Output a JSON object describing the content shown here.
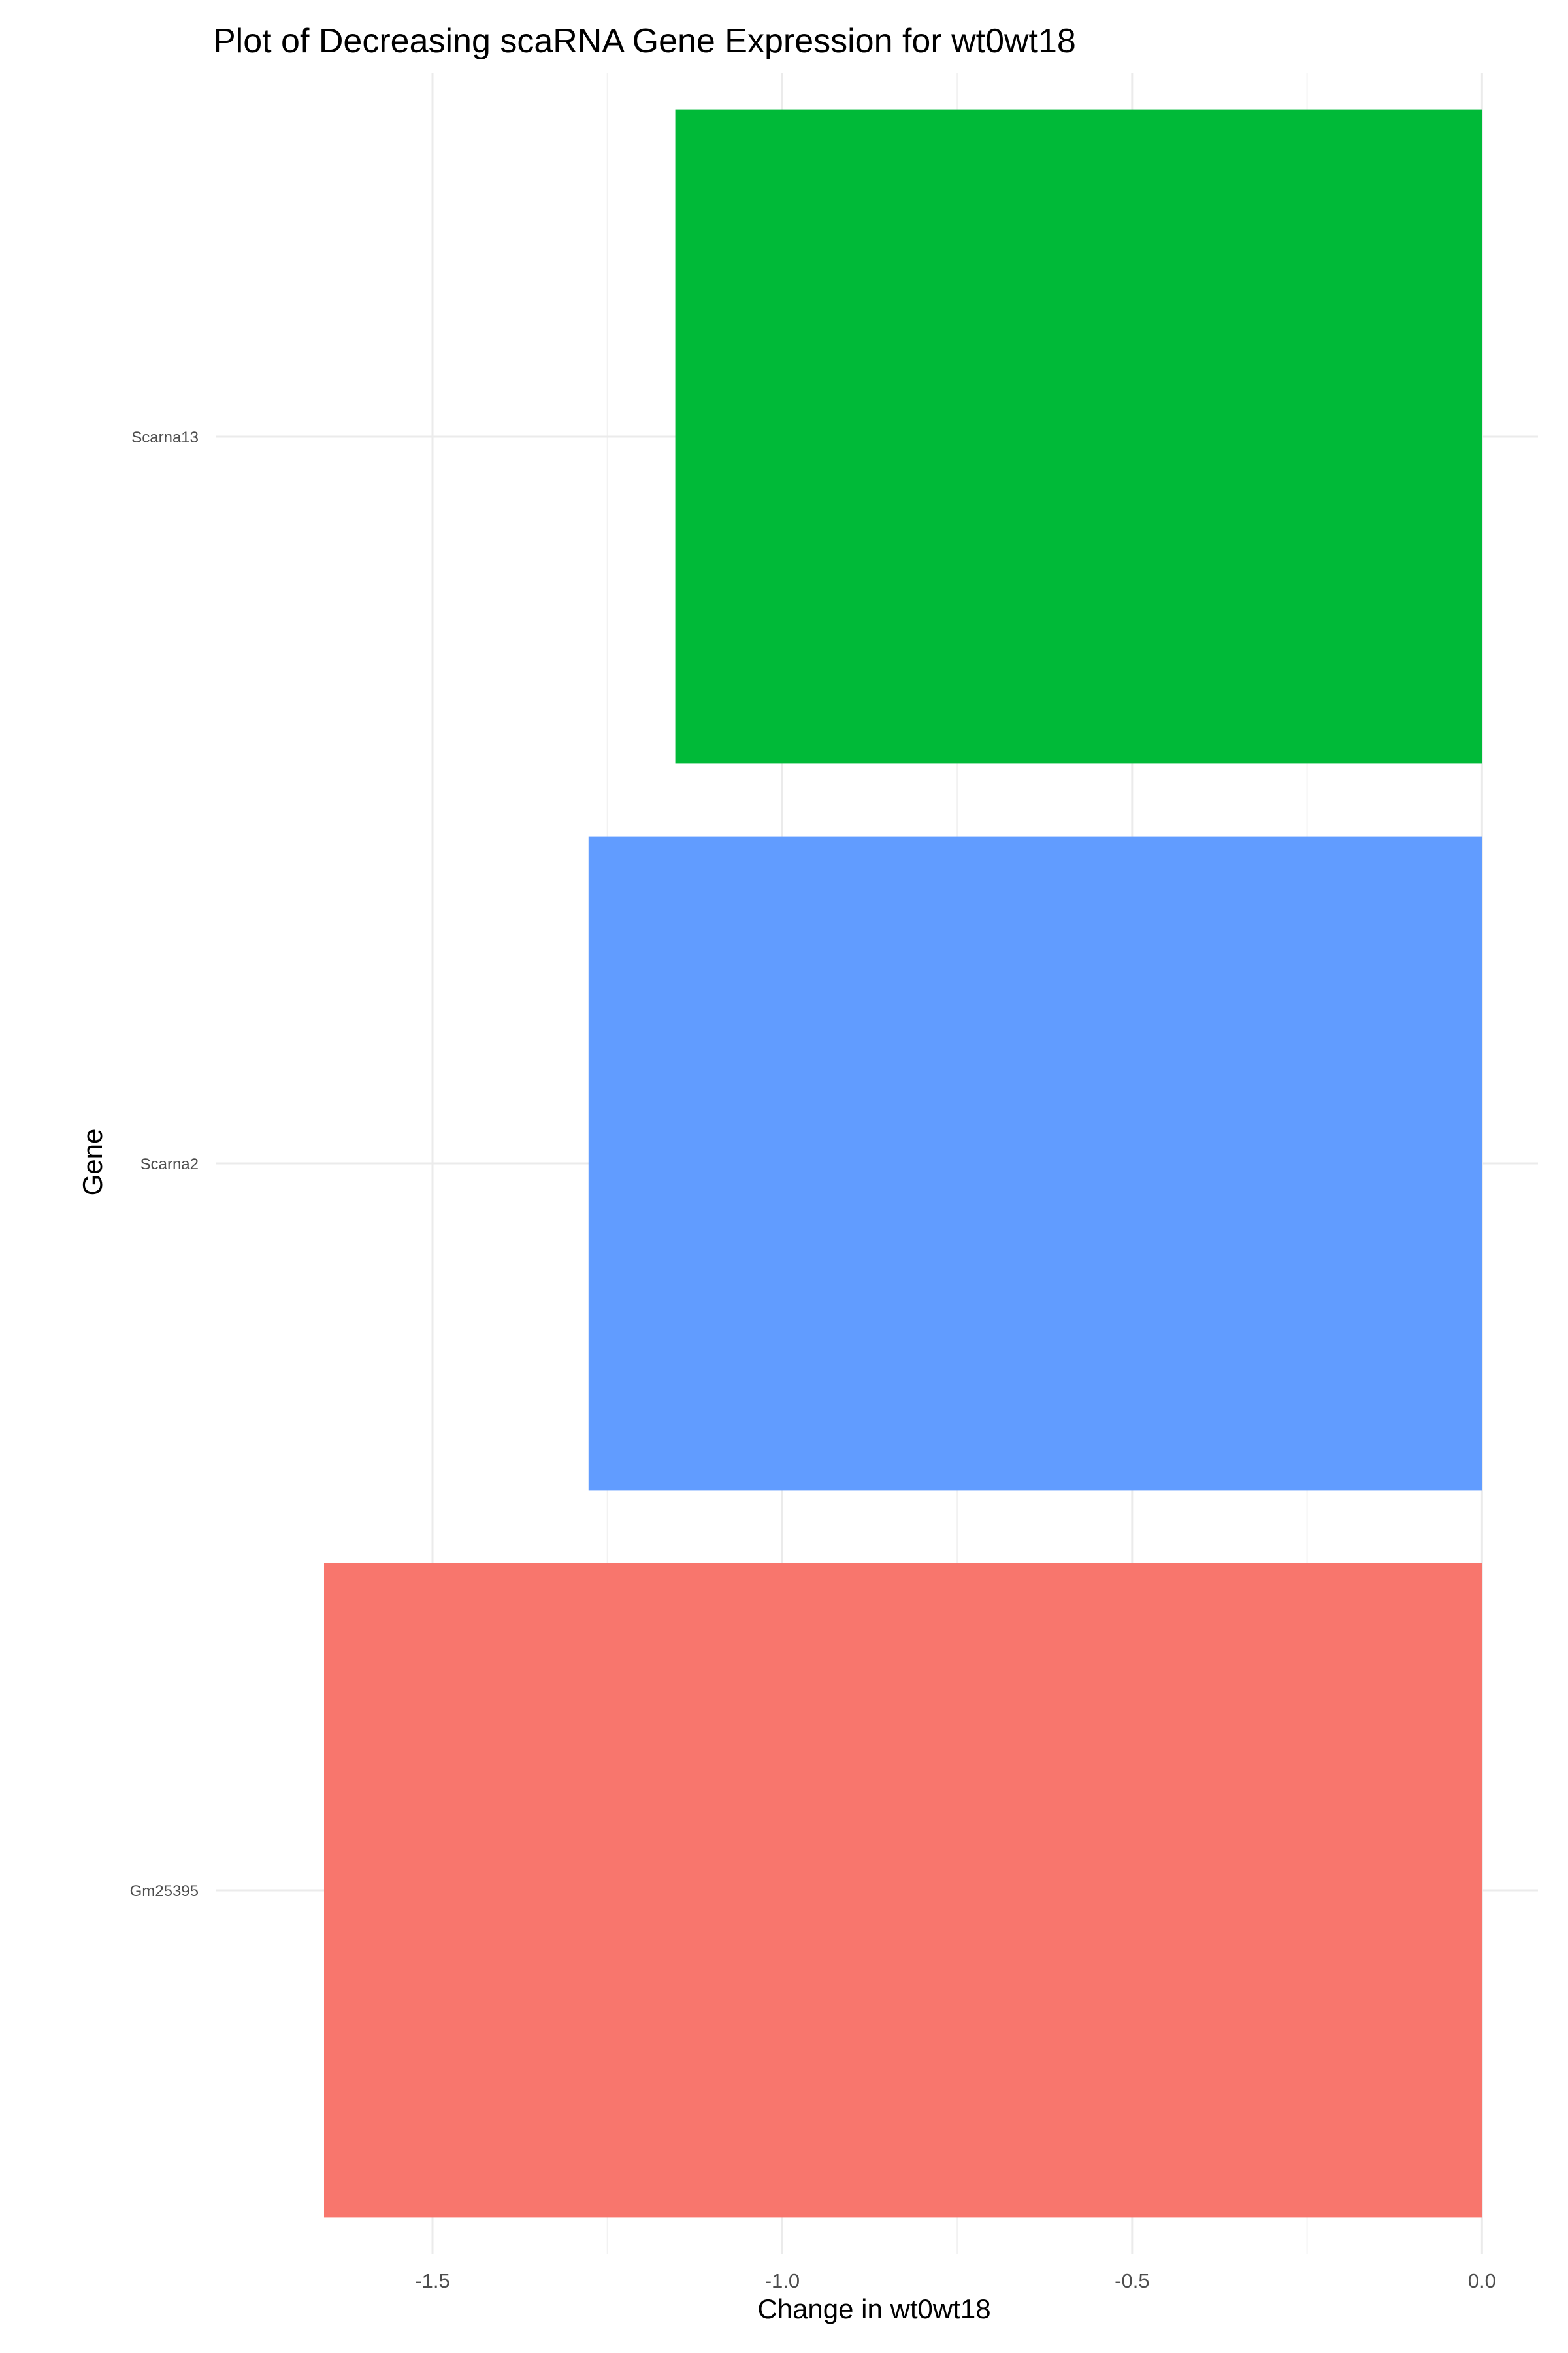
{
  "chart_data": {
    "type": "bar",
    "orientation": "horizontal",
    "title": "Plot of Decreasing scaRNA Gene Expression for wt0wt18",
    "xlabel": "Change in wt0wt18",
    "ylabel": "Gene",
    "xlim": [
      -1.81,
      0.08
    ],
    "x_ticks": [
      "-1.5",
      "-1.0",
      "-0.5",
      "0.0"
    ],
    "categories": [
      "Gm25395",
      "Scarna2",
      "Scarna13"
    ],
    "values": [
      -1.655,
      -1.277,
      -1.153
    ],
    "colors": [
      "#F8766D",
      "#619CFF",
      "#00BA38"
    ],
    "grid": true,
    "legend": "none"
  }
}
